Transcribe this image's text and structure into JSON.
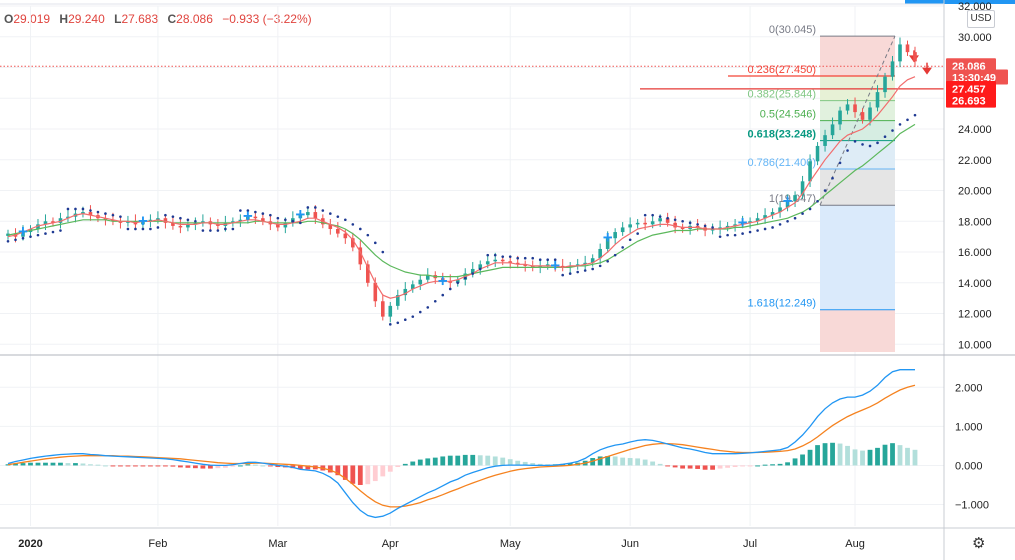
{
  "ohlc": {
    "o_key": "O",
    "o": "29.019",
    "h_key": "H",
    "h": "29.240",
    "l_key": "L",
    "l": "27.683",
    "c_key": "C",
    "c": "28.086",
    "change": "−0.933 (−3.22%)"
  },
  "currency_button": "USD",
  "settings_icon": "gear-icon",
  "colors": {
    "up": "#26a69a",
    "down": "#ef5350",
    "ma_fast": "#f26d6d",
    "ma_slow": "#5cb85c",
    "sar": "#1f3a93",
    "macd": "#2196f3",
    "signal": "#f5821f",
    "price_tag": "#ef5350",
    "marker": "#2196f3"
  },
  "chart_data": [
    {
      "type": "candlestick",
      "x_axis_labels": [
        "2020",
        "Feb",
        "Mar",
        "Apr",
        "May",
        "Jun",
        "Jul",
        "Aug"
      ],
      "y_ticks": [
        "10.000",
        "12.000",
        "14.000",
        "16.000",
        "18.000",
        "20.000",
        "22.000",
        "24.000",
        "26.000",
        "28.000",
        "30.000",
        "32.000"
      ],
      "ylim": [
        9.5,
        32.0
      ],
      "series": [
        {
          "kind": "price",
          "values": [
            17.2,
            17.0,
            17.3,
            17.5,
            17.8,
            18.0,
            17.9,
            18.2,
            18.3,
            18.5,
            18.6,
            18.4,
            18.2,
            18.1,
            18.0,
            17.9,
            18.0,
            17.8,
            18.0,
            18.1,
            18.2,
            17.9,
            17.7,
            17.6,
            17.8,
            17.9,
            18.0,
            17.8,
            17.7,
            17.9,
            18.0,
            18.1,
            18.3,
            18.2,
            18.0,
            17.8,
            17.6,
            17.9,
            18.2,
            18.4,
            18.6,
            18.2,
            17.8,
            17.5,
            17.2,
            16.9,
            16.3,
            15.2,
            14.0,
            12.8,
            11.8,
            12.5,
            13.2,
            13.6,
            13.9,
            14.2,
            14.5,
            14.3,
            14.1,
            14.0,
            14.2,
            14.6,
            14.9,
            15.2,
            15.4,
            15.5,
            15.4,
            15.3,
            15.2,
            15.1,
            15.0,
            15.1,
            15.2,
            15.1,
            15.0,
            15.1,
            15.2,
            15.3,
            15.6,
            16.2,
            16.9,
            17.3,
            17.6,
            17.8,
            17.9,
            17.8,
            18.0,
            18.2,
            17.9,
            17.6,
            17.5,
            17.7,
            17.6,
            17.4,
            17.5,
            17.6,
            17.7,
            17.8,
            17.9,
            18.0,
            18.2,
            18.4,
            18.6,
            18.9,
            19.3,
            19.7,
            20.6,
            21.9,
            22.9,
            23.6,
            24.3,
            25.2,
            25.6,
            25.1,
            24.6,
            25.4,
            26.4,
            27.4,
            28.4,
            29.5,
            29.0,
            28.4
          ]
        },
        {
          "kind": "moving_average_fast",
          "values": [
            17.0,
            17.1,
            17.3,
            17.5,
            17.7,
            17.8,
            17.9,
            18.0,
            18.2,
            18.4,
            18.5,
            18.4,
            18.3,
            18.2,
            18.1,
            18.0,
            18.0,
            17.9,
            18.0,
            18.0,
            18.1,
            18.0,
            17.9,
            17.8,
            17.8,
            17.8,
            17.9,
            17.9,
            17.8,
            17.8,
            17.9,
            18.0,
            18.1,
            18.1,
            18.0,
            17.9,
            17.8,
            17.8,
            17.9,
            18.0,
            18.2,
            18.2,
            18.0,
            17.8,
            17.6,
            17.3,
            16.8,
            16.0,
            15.0,
            14.0,
            13.2,
            13.0,
            13.1,
            13.3,
            13.6,
            13.8,
            14.0,
            14.1,
            14.1,
            14.1,
            14.2,
            14.4,
            14.6,
            14.9,
            15.1,
            15.3,
            15.3,
            15.3,
            15.2,
            15.2,
            15.1,
            15.1,
            15.1,
            15.1,
            15.0,
            15.1,
            15.1,
            15.2,
            15.3,
            15.6,
            16.0,
            16.5,
            16.9,
            17.2,
            17.5,
            17.6,
            17.7,
            17.8,
            17.8,
            17.7,
            17.6,
            17.6,
            17.6,
            17.5,
            17.5,
            17.5,
            17.6,
            17.7,
            17.8,
            17.9,
            18.0,
            18.2,
            18.4,
            18.6,
            18.9,
            19.2,
            19.8,
            20.6,
            21.3,
            22.0,
            22.6,
            23.2,
            23.6,
            23.8,
            24.0,
            24.4,
            24.9,
            25.5,
            26.1,
            26.8,
            27.2,
            27.4
          ]
        },
        {
          "kind": "moving_average_slow",
          "values": [
            17.1,
            17.2,
            17.3,
            17.4,
            17.5,
            17.6,
            17.7,
            17.8,
            17.9,
            18.0,
            18.1,
            18.1,
            18.1,
            18.1,
            18.0,
            18.0,
            18.0,
            18.0,
            18.0,
            18.0,
            18.0,
            18.0,
            17.9,
            17.9,
            17.9,
            17.9,
            17.9,
            17.9,
            17.9,
            17.9,
            17.9,
            17.9,
            17.9,
            18.0,
            18.0,
            17.9,
            17.9,
            17.9,
            17.9,
            17.9,
            18.0,
            18.0,
            17.9,
            17.8,
            17.7,
            17.5,
            17.2,
            16.8,
            16.3,
            15.8,
            15.4,
            15.1,
            14.9,
            14.7,
            14.6,
            14.5,
            14.5,
            14.4,
            14.4,
            14.4,
            14.4,
            14.5,
            14.6,
            14.7,
            14.8,
            14.9,
            15.0,
            15.0,
            15.0,
            15.0,
            15.0,
            15.0,
            15.0,
            15.0,
            15.0,
            15.0,
            15.1,
            15.1,
            15.2,
            15.3,
            15.5,
            15.8,
            16.1,
            16.4,
            16.7,
            16.9,
            17.1,
            17.2,
            17.3,
            17.4,
            17.4,
            17.4,
            17.5,
            17.5,
            17.5,
            17.5,
            17.5,
            17.6,
            17.6,
            17.7,
            17.8,
            17.9,
            18.0,
            18.1,
            18.2,
            18.4,
            18.6,
            18.9,
            19.3,
            19.7,
            20.1,
            20.5,
            20.9,
            21.3,
            21.6,
            22.0,
            22.4,
            22.8,
            23.2,
            23.7,
            24.0,
            24.3
          ]
        },
        {
          "kind": "parabolic_sar",
          "values": [
            16.7,
            16.8,
            16.9,
            17.0,
            17.1,
            17.2,
            17.3,
            17.4,
            18.8,
            18.8,
            18.8,
            18.7,
            18.6,
            18.5,
            18.4,
            18.3,
            17.5,
            17.5,
            17.5,
            17.5,
            17.6,
            18.4,
            18.3,
            18.2,
            18.1,
            18.0,
            17.4,
            17.4,
            17.4,
            17.5,
            17.5,
            18.7,
            18.7,
            18.6,
            18.5,
            18.4,
            18.2,
            18.1,
            18.0,
            17.9,
            18.9,
            18.9,
            18.7,
            18.5,
            18.3,
            18.1,
            17.8,
            17.5,
            17.1,
            16.6,
            16.0,
            11.3,
            11.4,
            11.6,
            11.8,
            12.1,
            12.4,
            12.8,
            13.2,
            13.6,
            14.0,
            14.3,
            14.6,
            14.9,
            15.8,
            15.8,
            15.7,
            15.7,
            15.6,
            15.6,
            15.6,
            15.5,
            15.5,
            15.5,
            14.5,
            14.6,
            14.7,
            14.8,
            14.9,
            15.1,
            15.4,
            15.8,
            16.3,
            16.8,
            17.2,
            18.4,
            18.4,
            18.3,
            18.2,
            18.1,
            18.0,
            17.9,
            17.8,
            17.7,
            17.6,
            17.0,
            17.1,
            17.1,
            17.2,
            17.3,
            17.4,
            17.5,
            17.6,
            17.8,
            18.0,
            18.2,
            18.5,
            18.8,
            19.3,
            20.0,
            20.8,
            21.8,
            22.6,
            23.2,
            23.0,
            22.9,
            23.1,
            23.5,
            23.9,
            24.3,
            24.6,
            24.9
          ]
        }
      ],
      "markers": [
        {
          "x_index": 2,
          "label": "+"
        },
        {
          "x_index": 18,
          "label": "+"
        },
        {
          "x_index": 32,
          "label": "+"
        },
        {
          "x_index": 39,
          "label": "+"
        },
        {
          "x_index": 58,
          "label": "+"
        },
        {
          "x_index": 73,
          "label": "+"
        },
        {
          "x_index": 80,
          "label": "+"
        },
        {
          "x_index": 98,
          "label": "+"
        },
        {
          "x_index": 104,
          "label": "+"
        }
      ],
      "fibonacci": {
        "levels": [
          {
            "ratio": "0",
            "value": 30.045,
            "label": "0(30.045)",
            "color": "#787b86"
          },
          {
            "ratio": "0.236",
            "value": 27.45,
            "label": "0.236(27.450)",
            "color": "#f44336"
          },
          {
            "ratio": "0.382",
            "value": 25.844,
            "label": "0.382(25.844)",
            "color": "#81c784"
          },
          {
            "ratio": "0.5",
            "value": 24.546,
            "label": "0.5(24.546)",
            "color": "#4caf50"
          },
          {
            "ratio": "0.618",
            "value": 23.248,
            "label": "0.618(23.248)",
            "color": "#089981"
          },
          {
            "ratio": "0.786",
            "value": 21.4,
            "label": "0.786(21.400)",
            "color": "#64b5f6"
          },
          {
            "ratio": "1",
            "value": 19.047,
            "label": "1(19.047)",
            "color": "#787b86"
          },
          {
            "ratio": "1.618",
            "value": 12.249,
            "label": "1.618(12.249)",
            "color": "#2196f3"
          }
        ]
      },
      "horizontal_lines": [
        27.457,
        26.693
      ],
      "price_tags": [
        {
          "label": "28.086",
          "value": 28.086
        },
        {
          "label": "13:30:49",
          "value": 27.35
        },
        {
          "label": "27.457",
          "value": 26.6
        },
        {
          "label": "26.693",
          "value": 25.85
        }
      ],
      "last_price": 28.086
    },
    {
      "type": "macd",
      "y_ticks": [
        "−1.000",
        "0.000",
        "1.000",
        "2.000"
      ],
      "ylim": [
        -1.55,
        2.75
      ],
      "series": [
        {
          "name": "",
          "kind": "macd",
          "values": [
            0.05,
            0.1,
            0.14,
            0.18,
            0.21,
            0.24,
            0.26,
            0.28,
            0.29,
            0.3,
            0.3,
            0.28,
            0.27,
            0.25,
            0.24,
            0.23,
            0.22,
            0.21,
            0.2,
            0.19,
            0.18,
            0.17,
            0.15,
            0.12,
            0.09,
            0.06,
            0.03,
            0.01,
            0.0,
            0.0,
            0.02,
            0.05,
            0.08,
            0.08,
            0.06,
            0.03,
            0.0,
            -0.02,
            -0.05,
            -0.1,
            -0.12,
            -0.14,
            -0.2,
            -0.3,
            -0.45,
            -0.7,
            -0.95,
            -1.15,
            -1.28,
            -1.33,
            -1.3,
            -1.22,
            -1.1,
            -1.0,
            -0.9,
            -0.8,
            -0.7,
            -0.62,
            -0.52,
            -0.42,
            -0.35,
            -0.25,
            -0.18,
            -0.12,
            -0.06,
            -0.02,
            0.0,
            0.01,
            0.01,
            0.01,
            0.0,
            0.0,
            0.0,
            0.01,
            0.03,
            0.06,
            0.1,
            0.18,
            0.3,
            0.4,
            0.47,
            0.52,
            0.55,
            0.6,
            0.64,
            0.66,
            0.64,
            0.6,
            0.55,
            0.5,
            0.45,
            0.42,
            0.38,
            0.33,
            0.3,
            0.3,
            0.3,
            0.3,
            0.31,
            0.32,
            0.34,
            0.36,
            0.38,
            0.4,
            0.46,
            0.6,
            0.78,
            1.0,
            1.25,
            1.45,
            1.6,
            1.7,
            1.75,
            1.75,
            1.8,
            1.9,
            2.05,
            2.25,
            2.4,
            2.45,
            2.45,
            2.45
          ]
        },
        {
          "name": "",
          "kind": "signal",
          "values": [
            0.02,
            0.05,
            0.08,
            0.11,
            0.14,
            0.17,
            0.19,
            0.21,
            0.23,
            0.24,
            0.25,
            0.25,
            0.25,
            0.25,
            0.25,
            0.24,
            0.24,
            0.23,
            0.22,
            0.21,
            0.2,
            0.19,
            0.18,
            0.17,
            0.15,
            0.13,
            0.11,
            0.09,
            0.07,
            0.06,
            0.05,
            0.05,
            0.05,
            0.06,
            0.06,
            0.05,
            0.04,
            0.03,
            0.02,
            0.0,
            -0.02,
            -0.04,
            -0.07,
            -0.12,
            -0.2,
            -0.33,
            -0.48,
            -0.65,
            -0.8,
            -0.93,
            -1.02,
            -1.06,
            -1.06,
            -1.04,
            -1.0,
            -0.95,
            -0.88,
            -0.82,
            -0.75,
            -0.67,
            -0.6,
            -0.52,
            -0.45,
            -0.38,
            -0.31,
            -0.25,
            -0.2,
            -0.15,
            -0.11,
            -0.08,
            -0.06,
            -0.04,
            -0.03,
            -0.02,
            -0.01,
            0.0,
            0.03,
            0.06,
            0.11,
            0.17,
            0.23,
            0.29,
            0.35,
            0.41,
            0.46,
            0.51,
            0.54,
            0.56,
            0.56,
            0.55,
            0.53,
            0.5,
            0.47,
            0.44,
            0.41,
            0.38,
            0.36,
            0.34,
            0.33,
            0.33,
            0.33,
            0.34,
            0.35,
            0.36,
            0.38,
            0.42,
            0.5,
            0.6,
            0.73,
            0.88,
            1.02,
            1.14,
            1.25,
            1.34,
            1.42,
            1.5,
            1.6,
            1.72,
            1.83,
            1.93,
            2.0,
            2.05
          ]
        },
        {
          "name": "",
          "kind": "histogram",
          "values": [
            0.03,
            0.05,
            0.06,
            0.07,
            0.07,
            0.07,
            0.07,
            0.07,
            0.06,
            0.06,
            0.05,
            0.03,
            0.02,
            0.0,
            -0.01,
            -0.01,
            -0.02,
            -0.02,
            -0.02,
            -0.02,
            -0.02,
            -0.02,
            -0.03,
            -0.05,
            -0.06,
            -0.07,
            -0.08,
            -0.08,
            -0.07,
            -0.06,
            -0.03,
            0.0,
            0.03,
            0.02,
            0.0,
            -0.02,
            -0.04,
            -0.05,
            -0.07,
            -0.1,
            -0.1,
            -0.1,
            -0.13,
            -0.18,
            -0.25,
            -0.37,
            -0.47,
            -0.5,
            -0.48,
            -0.4,
            -0.28,
            -0.16,
            -0.04,
            0.04,
            0.1,
            0.15,
            0.18,
            0.2,
            0.23,
            0.25,
            0.25,
            0.27,
            0.27,
            0.26,
            0.25,
            0.23,
            0.2,
            0.16,
            0.12,
            0.09,
            0.06,
            0.04,
            0.03,
            0.03,
            0.04,
            0.06,
            0.07,
            0.12,
            0.19,
            0.23,
            0.24,
            0.23,
            0.2,
            0.19,
            0.18,
            0.15,
            0.1,
            0.04,
            -0.01,
            -0.05,
            -0.08,
            -0.08,
            -0.09,
            -0.11,
            -0.11,
            -0.08,
            -0.06,
            -0.04,
            -0.02,
            -0.01,
            0.0,
            0.02,
            0.03,
            0.04,
            0.08,
            0.18,
            0.28,
            0.4,
            0.52,
            0.57,
            0.58,
            0.56,
            0.5,
            0.41,
            0.38,
            0.4,
            0.45,
            0.53,
            0.57,
            0.52,
            0.45,
            0.4
          ]
        }
      ]
    }
  ]
}
